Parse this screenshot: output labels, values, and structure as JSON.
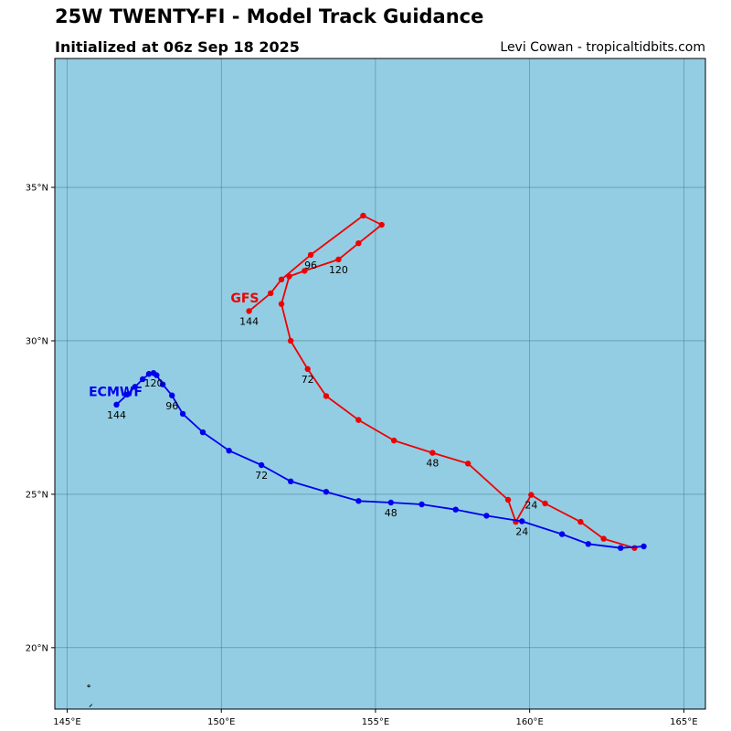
{
  "header": {
    "title": "25W TWENTY-FI - Model Track Guidance",
    "subtitle": "Initialized at 06z Sep 18 2025",
    "credit": "Levi Cowan - tropicaltidbits.com"
  },
  "map": {
    "ocean_color": "#93cde3",
    "grid_color": "#3a6a7a",
    "lon_range": [
      144.6,
      165.7
    ],
    "lat_range": [
      18.0,
      39.2
    ],
    "lon_ticks": [
      {
        "value": 145,
        "label": "145°E"
      },
      {
        "value": 150,
        "label": "150°E"
      },
      {
        "value": 155,
        "label": "155°E"
      },
      {
        "value": 160,
        "label": "160°E"
      },
      {
        "value": 165,
        "label": "165°E"
      }
    ],
    "lat_ticks": [
      {
        "value": 20,
        "label": "20°N"
      },
      {
        "value": 25,
        "label": "25°N"
      },
      {
        "value": 30,
        "label": "30°N"
      },
      {
        "value": 35,
        "label": "35°N"
      }
    ]
  },
  "tracks": [
    {
      "name": "GFS",
      "color": "#ee0000",
      "points": [
        [
          163.4,
          23.25
        ],
        [
          162.4,
          23.55
        ],
        [
          161.65,
          24.1
        ],
        [
          160.5,
          24.7
        ],
        [
          160.05,
          24.98
        ],
        [
          159.55,
          24.1
        ],
        [
          159.3,
          24.82
        ],
        [
          158.0,
          26.0
        ],
        [
          156.85,
          26.35
        ],
        [
          155.6,
          26.75
        ],
        [
          154.45,
          27.42
        ],
        [
          153.4,
          28.2
        ],
        [
          152.8,
          29.08
        ],
        [
          152.25,
          30.0
        ],
        [
          151.95,
          31.2
        ],
        [
          152.2,
          32.1
        ],
        [
          152.7,
          32.28
        ],
        [
          153.8,
          32.65
        ],
        [
          154.45,
          33.18
        ],
        [
          155.2,
          33.78
        ],
        [
          154.6,
          34.08
        ],
        [
          152.9,
          32.8
        ],
        [
          151.95,
          32.0
        ],
        [
          151.6,
          31.55
        ],
        [
          150.9,
          30.97
        ]
      ],
      "hour_labels": [
        {
          "text": "24",
          "lon": 160.05,
          "lat": 24.98
        },
        {
          "text": "48",
          "lon": 156.85,
          "lat": 26.35
        },
        {
          "text": "72",
          "lon": 152.8,
          "lat": 29.08
        },
        {
          "text": "96",
          "lon": 152.9,
          "lat": 32.8
        },
        {
          "text": "120",
          "lon": 153.8,
          "lat": 32.65
        },
        {
          "text": "144",
          "lon": 150.9,
          "lat": 30.97
        }
      ],
      "label_at": {
        "lon": 150.3,
        "lat": 31.25
      }
    },
    {
      "name": "ECMWF",
      "color": "#0000ee",
      "points": [
        [
          163.7,
          23.3
        ],
        [
          162.95,
          23.25
        ],
        [
          161.9,
          23.38
        ],
        [
          161.05,
          23.7
        ],
        [
          159.75,
          24.12
        ],
        [
          158.6,
          24.3
        ],
        [
          157.6,
          24.5
        ],
        [
          156.5,
          24.67
        ],
        [
          155.5,
          24.73
        ],
        [
          154.45,
          24.78
        ],
        [
          153.4,
          25.08
        ],
        [
          152.25,
          25.42
        ],
        [
          151.3,
          25.95
        ],
        [
          150.25,
          26.42
        ],
        [
          149.4,
          27.02
        ],
        [
          148.75,
          27.62
        ],
        [
          148.4,
          28.22
        ],
        [
          148.1,
          28.58
        ],
        [
          147.9,
          28.88
        ],
        [
          147.8,
          28.95
        ],
        [
          147.65,
          28.92
        ],
        [
          147.45,
          28.75
        ],
        [
          147.2,
          28.5
        ],
        [
          146.95,
          28.25
        ],
        [
          146.6,
          27.92
        ]
      ],
      "hour_labels": [
        {
          "text": "24",
          "lon": 159.75,
          "lat": 24.12
        },
        {
          "text": "48",
          "lon": 155.5,
          "lat": 24.73
        },
        {
          "text": "72",
          "lon": 151.3,
          "lat": 25.95
        },
        {
          "text": "96",
          "lon": 148.4,
          "lat": 28.22
        },
        {
          "text": "120",
          "lon": 147.8,
          "lat": 28.95
        },
        {
          "text": "144",
          "lon": 146.6,
          "lat": 27.92
        }
      ],
      "label_at": {
        "lon": 145.7,
        "lat": 28.2
      }
    }
  ]
}
